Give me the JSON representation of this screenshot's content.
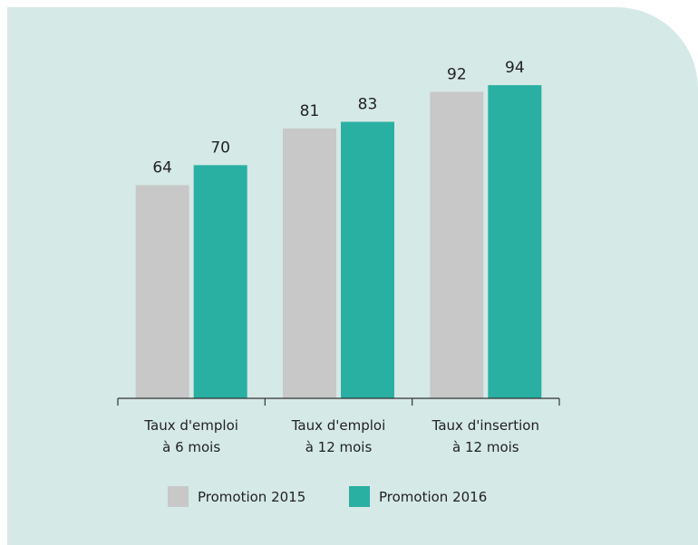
{
  "chart_data": {
    "type": "bar",
    "categories": [
      "Taux d'emploi\nà 6 mois",
      "Taux d'emploi\nà 12 mois",
      "Taux d'insertion\nà 12 mois"
    ],
    "series": [
      {
        "name": "Promotion 2015",
        "color": "#c8c8c8",
        "values": [
          64,
          81,
          92
        ]
      },
      {
        "name": "Promotion 2016",
        "color": "#2aafa3",
        "values": [
          70,
          83,
          94
        ]
      }
    ],
    "ylim": [
      0,
      100
    ]
  }
}
